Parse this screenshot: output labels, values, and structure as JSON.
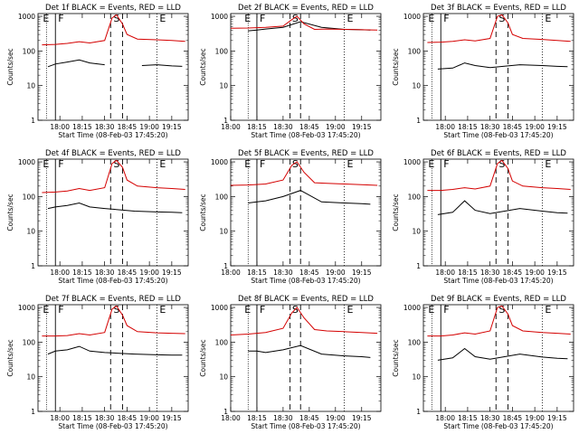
{
  "y_ticks": [
    "1",
    "10",
    "100",
    "1000"
  ],
  "x_ticks": [
    "18:00",
    "18:15",
    "18:30",
    "18:45",
    "19:00",
    "19:15"
  ],
  "start_time_label": "Start Time (08-Feb-03 17:45:20)",
  "colors": {
    "events": "#000000",
    "lld": "#d40000",
    "axis": "#000000"
  },
  "chart_data": [
    {
      "type": "line",
      "title": "Det 1f BLACK = Events, RED = LLD",
      "ylabel": "Counts/sec",
      "xlabel": "Start Time (08-Feb-03 17:45:20)",
      "scale": "log",
      "ylim": [
        1,
        1200
      ],
      "xlim": [
        "17:45:20",
        "19:26"
      ],
      "markers": [
        {
          "label": "E"
        },
        {
          "label": "F"
        },
        {
          "label": "S"
        },
        {
          "label": "E"
        }
      ],
      "series": [
        {
          "name": "Events",
          "x": [
            "17:52",
            "17:57",
            "18:05",
            "18:13",
            "18:20",
            "18:30",
            "18:45",
            "18:55",
            "19:05",
            "19:15",
            "19:22"
          ],
          "values": [
            35,
            42,
            48,
            55,
            45,
            40,
            null,
            38,
            40,
            37,
            36
          ]
        },
        {
          "name": "LLD",
          "x": [
            "17:48",
            "17:57",
            "18:05",
            "18:13",
            "18:20",
            "18:30",
            "18:35",
            "18:38",
            "18:42",
            "18:45",
            "18:52",
            "19:05",
            "19:15",
            "19:24"
          ],
          "values": [
            150,
            155,
            165,
            185,
            170,
            200,
            900,
            1100,
            600,
            300,
            220,
            210,
            200,
            190
          ]
        }
      ]
    },
    {
      "type": "line",
      "title": "Det 2f BLACK = Events, RED = LLD",
      "ylabel": "Counts/sec",
      "xlabel": "Start Time (08-Feb-03 17:45:20)",
      "scale": "log",
      "ylim": [
        1,
        1200
      ],
      "xlim": [
        "18:00",
        "19:26"
      ],
      "markers": [
        {
          "label": "E"
        },
        {
          "label": "F"
        },
        {
          "label": "S"
        },
        {
          "label": "E"
        }
      ],
      "series": [
        {
          "name": "Events",
          "x": [
            "18:10",
            "18:15",
            "18:20",
            "18:30",
            "18:40",
            "18:52",
            "19:05",
            "19:15",
            "19:20"
          ],
          "values": [
            380,
            400,
            430,
            480,
            700,
            480,
            420,
            410,
            400
          ]
        },
        {
          "name": "LLD",
          "x": [
            "18:00",
            "18:10",
            "18:20",
            "18:30",
            "18:35",
            "18:38",
            "18:42",
            "18:48",
            "18:55",
            "19:05",
            "19:15",
            "19:24"
          ],
          "values": [
            450,
            460,
            480,
            520,
            800,
            1000,
            600,
            420,
            430,
            420,
            410,
            400
          ]
        }
      ]
    },
    {
      "type": "line",
      "title": "Det 3f BLACK = Events, RED = LLD",
      "ylabel": "Counts/sec",
      "xlabel": "Start Time (08-Feb-03 17:45:20)",
      "scale": "log",
      "ylim": [
        1,
        1200
      ],
      "xlim": [
        "17:45:20",
        "19:26"
      ],
      "markers": [
        {
          "label": "E"
        },
        {
          "label": "F"
        },
        {
          "label": "S"
        },
        {
          "label": "E"
        }
      ],
      "series": [
        {
          "name": "Events",
          "x": [
            "17:55",
            "18:05",
            "18:13",
            "18:20",
            "18:30",
            "18:50",
            "19:05",
            "19:15",
            "19:22"
          ],
          "values": [
            30,
            32,
            45,
            38,
            33,
            40,
            38,
            36,
            35
          ]
        },
        {
          "name": "LLD",
          "x": [
            "17:48",
            "17:57",
            "18:05",
            "18:13",
            "18:20",
            "18:30",
            "18:35",
            "18:38",
            "18:42",
            "18:45",
            "18:52",
            "19:05",
            "19:15",
            "19:24"
          ],
          "values": [
            175,
            180,
            190,
            210,
            195,
            230,
            1000,
            1100,
            650,
            300,
            230,
            215,
            200,
            190
          ]
        }
      ]
    },
    {
      "type": "line",
      "title": "Det 4f BLACK = Events, RED = LLD",
      "ylabel": "Counts/sec",
      "xlabel": "Start Time (08-Feb-03 17:45:20)",
      "scale": "log",
      "ylim": [
        1,
        1200
      ],
      "xlim": [
        "17:45:20",
        "19:26"
      ],
      "markers": [
        {
          "label": "E"
        },
        {
          "label": "F"
        },
        {
          "label": "S"
        },
        {
          "label": "E"
        }
      ],
      "series": [
        {
          "name": "Events",
          "x": [
            "17:52",
            "17:57",
            "18:05",
            "18:13",
            "18:20",
            "18:30",
            "18:50",
            "19:05",
            "19:15",
            "19:22"
          ],
          "values": [
            45,
            50,
            55,
            65,
            50,
            45,
            38,
            36,
            35,
            34
          ]
        },
        {
          "name": "LLD",
          "x": [
            "17:48",
            "17:57",
            "18:05",
            "18:13",
            "18:20",
            "18:30",
            "18:35",
            "18:38",
            "18:42",
            "18:45",
            "18:52",
            "19:05",
            "19:15",
            "19:24"
          ],
          "values": [
            130,
            135,
            145,
            170,
            150,
            180,
            900,
            1100,
            700,
            300,
            200,
            180,
            170,
            160
          ]
        }
      ]
    },
    {
      "type": "line",
      "title": "Det 5f BLACK = Events, RED = LLD",
      "ylabel": "Counts/sec",
      "xlabel": "Start Time (08-Feb-03 17:45:20)",
      "scale": "log",
      "ylim": [
        1,
        1200
      ],
      "xlim": [
        "18:00",
        "19:26"
      ],
      "markers": [
        {
          "label": "E"
        },
        {
          "label": "F"
        },
        {
          "label": "S"
        },
        {
          "label": "E"
        }
      ],
      "series": [
        {
          "name": "Events",
          "x": [
            "18:10",
            "18:15",
            "18:20",
            "18:30",
            "18:40",
            "18:52",
            "19:05",
            "19:15",
            "19:20"
          ],
          "values": [
            65,
            70,
            75,
            100,
            150,
            70,
            65,
            62,
            60
          ]
        },
        {
          "name": "LLD",
          "x": [
            "18:00",
            "18:10",
            "18:20",
            "18:30",
            "18:35",
            "18:38",
            "18:42",
            "18:48",
            "18:55",
            "19:05",
            "19:15",
            "19:24"
          ],
          "values": [
            210,
            215,
            230,
            300,
            800,
            1000,
            500,
            250,
            240,
            230,
            220,
            210
          ]
        }
      ]
    },
    {
      "type": "line",
      "title": "Det 6f BLACK = Events, RED = LLD",
      "ylabel": "Counts/sec",
      "xlabel": "Start Time (08-Feb-03 17:45:20)",
      "scale": "log",
      "ylim": [
        1,
        1200
      ],
      "xlim": [
        "17:45:20",
        "19:26"
      ],
      "markers": [
        {
          "label": "E"
        },
        {
          "label": "F"
        },
        {
          "label": "S"
        },
        {
          "label": "E"
        }
      ],
      "series": [
        {
          "name": "Events",
          "x": [
            "17:55",
            "18:05",
            "18:13",
            "18:20",
            "18:30",
            "18:50",
            "19:05",
            "19:15",
            "19:22"
          ],
          "values": [
            30,
            35,
            75,
            40,
            32,
            45,
            38,
            34,
            33
          ]
        },
        {
          "name": "LLD",
          "x": [
            "17:48",
            "17:57",
            "18:05",
            "18:13",
            "18:20",
            "18:30",
            "18:35",
            "18:38",
            "18:42",
            "18:45",
            "18:52",
            "19:05",
            "19:15",
            "19:24"
          ],
          "values": [
            150,
            150,
            160,
            180,
            165,
            200,
            900,
            1100,
            650,
            280,
            200,
            180,
            170,
            160
          ]
        }
      ]
    },
    {
      "type": "line",
      "title": "Det 7f BLACK = Events, RED = LLD",
      "ylabel": "Counts/sec",
      "xlabel": "Start Time (08-Feb-03 17:45:20)",
      "scale": "log",
      "ylim": [
        1,
        1200
      ],
      "xlim": [
        "17:45:20",
        "19:26"
      ],
      "markers": [
        {
          "label": "E"
        },
        {
          "label": "F"
        },
        {
          "label": "S"
        },
        {
          "label": "E"
        }
      ],
      "series": [
        {
          "name": "Events",
          "x": [
            "17:52",
            "17:57",
            "18:05",
            "18:13",
            "18:20",
            "18:30",
            "18:50",
            "19:05",
            "19:15",
            "19:22"
          ],
          "values": [
            45,
            55,
            60,
            75,
            55,
            50,
            45,
            43,
            42,
            42
          ]
        },
        {
          "name": "LLD",
          "x": [
            "17:48",
            "17:57",
            "18:05",
            "18:13",
            "18:20",
            "18:30",
            "18:35",
            "18:38",
            "18:42",
            "18:45",
            "18:52",
            "19:05",
            "19:15",
            "19:24"
          ],
          "values": [
            150,
            150,
            155,
            175,
            160,
            190,
            900,
            1100,
            600,
            300,
            200,
            185,
            180,
            175
          ]
        }
      ]
    },
    {
      "type": "line",
      "title": "Det 8f BLACK = Events, RED = LLD",
      "ylabel": "Counts/sec",
      "xlabel": "Start Time (08-Feb-03 17:45:20)",
      "scale": "log",
      "ylim": [
        1,
        1200
      ],
      "xlim": [
        "18:00",
        "19:26"
      ],
      "markers": [
        {
          "label": "E"
        },
        {
          "label": "F"
        },
        {
          "label": "S"
        },
        {
          "label": "E"
        }
      ],
      "series": [
        {
          "name": "Events",
          "x": [
            "18:10",
            "18:15",
            "18:20",
            "18:30",
            "18:40",
            "18:52",
            "19:05",
            "19:15",
            "19:20"
          ],
          "values": [
            55,
            55,
            50,
            60,
            80,
            45,
            40,
            38,
            36
          ]
        },
        {
          "name": "LLD",
          "x": [
            "18:00",
            "18:10",
            "18:20",
            "18:30",
            "18:35",
            "18:38",
            "18:42",
            "18:48",
            "18:55",
            "19:05",
            "19:15",
            "19:24"
          ],
          "values": [
            160,
            170,
            190,
            250,
            700,
            1000,
            500,
            230,
            210,
            200,
            190,
            180
          ]
        }
      ]
    },
    {
      "type": "line",
      "title": "Det 9f BLACK = Events, RED = LLD",
      "ylabel": "Counts/sec",
      "xlabel": "Start Time (08-Feb-03 17:45:20)",
      "scale": "log",
      "ylim": [
        1,
        1200
      ],
      "xlim": [
        "17:45:20",
        "19:26"
      ],
      "markers": [
        {
          "label": "E"
        },
        {
          "label": "F"
        },
        {
          "label": "S"
        },
        {
          "label": "E"
        }
      ],
      "series": [
        {
          "name": "Events",
          "x": [
            "17:55",
            "18:05",
            "18:13",
            "18:20",
            "18:30",
            "18:50",
            "19:05",
            "19:15",
            "19:22"
          ],
          "values": [
            30,
            35,
            65,
            38,
            32,
            45,
            37,
            34,
            33
          ]
        },
        {
          "name": "LLD",
          "x": [
            "17:48",
            "17:57",
            "18:05",
            "18:13",
            "18:20",
            "18:30",
            "18:35",
            "18:38",
            "18:42",
            "18:45",
            "18:52",
            "19:05",
            "19:15",
            "19:24"
          ],
          "values": [
            150,
            150,
            160,
            185,
            170,
            210,
            1000,
            1100,
            650,
            300,
            210,
            190,
            180,
            170
          ]
        }
      ]
    }
  ]
}
